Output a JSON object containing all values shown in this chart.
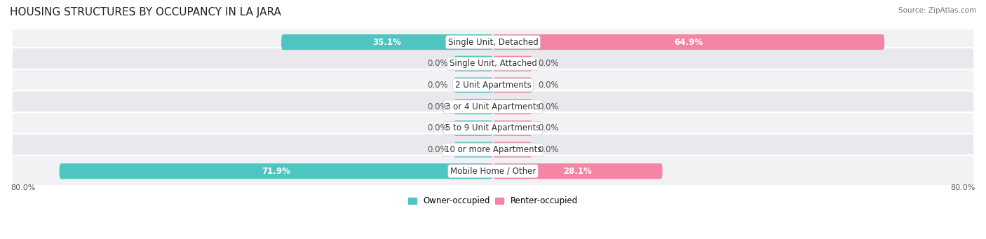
{
  "title": "HOUSING STRUCTURES BY OCCUPANCY IN LA JARA",
  "source": "Source: ZipAtlas.com",
  "categories": [
    "Single Unit, Detached",
    "Single Unit, Attached",
    "2 Unit Apartments",
    "3 or 4 Unit Apartments",
    "5 to 9 Unit Apartments",
    "10 or more Apartments",
    "Mobile Home / Other"
  ],
  "owner_values": [
    35.1,
    0.0,
    0.0,
    0.0,
    0.0,
    0.0,
    71.9
  ],
  "renter_values": [
    64.9,
    0.0,
    0.0,
    0.0,
    0.0,
    0.0,
    28.1
  ],
  "owner_color": "#4EC5C1",
  "renter_color": "#F585A5",
  "row_bg_color_odd": "#F2F2F5",
  "row_bg_color_even": "#E8E8ED",
  "axis_min": -80.0,
  "axis_max": 80.0,
  "axis_left_label": "80.0%",
  "axis_right_label": "80.0%",
  "title_fontsize": 11,
  "label_fontsize": 8.5,
  "value_fontsize": 8.5,
  "min_bar_width": 6.5
}
